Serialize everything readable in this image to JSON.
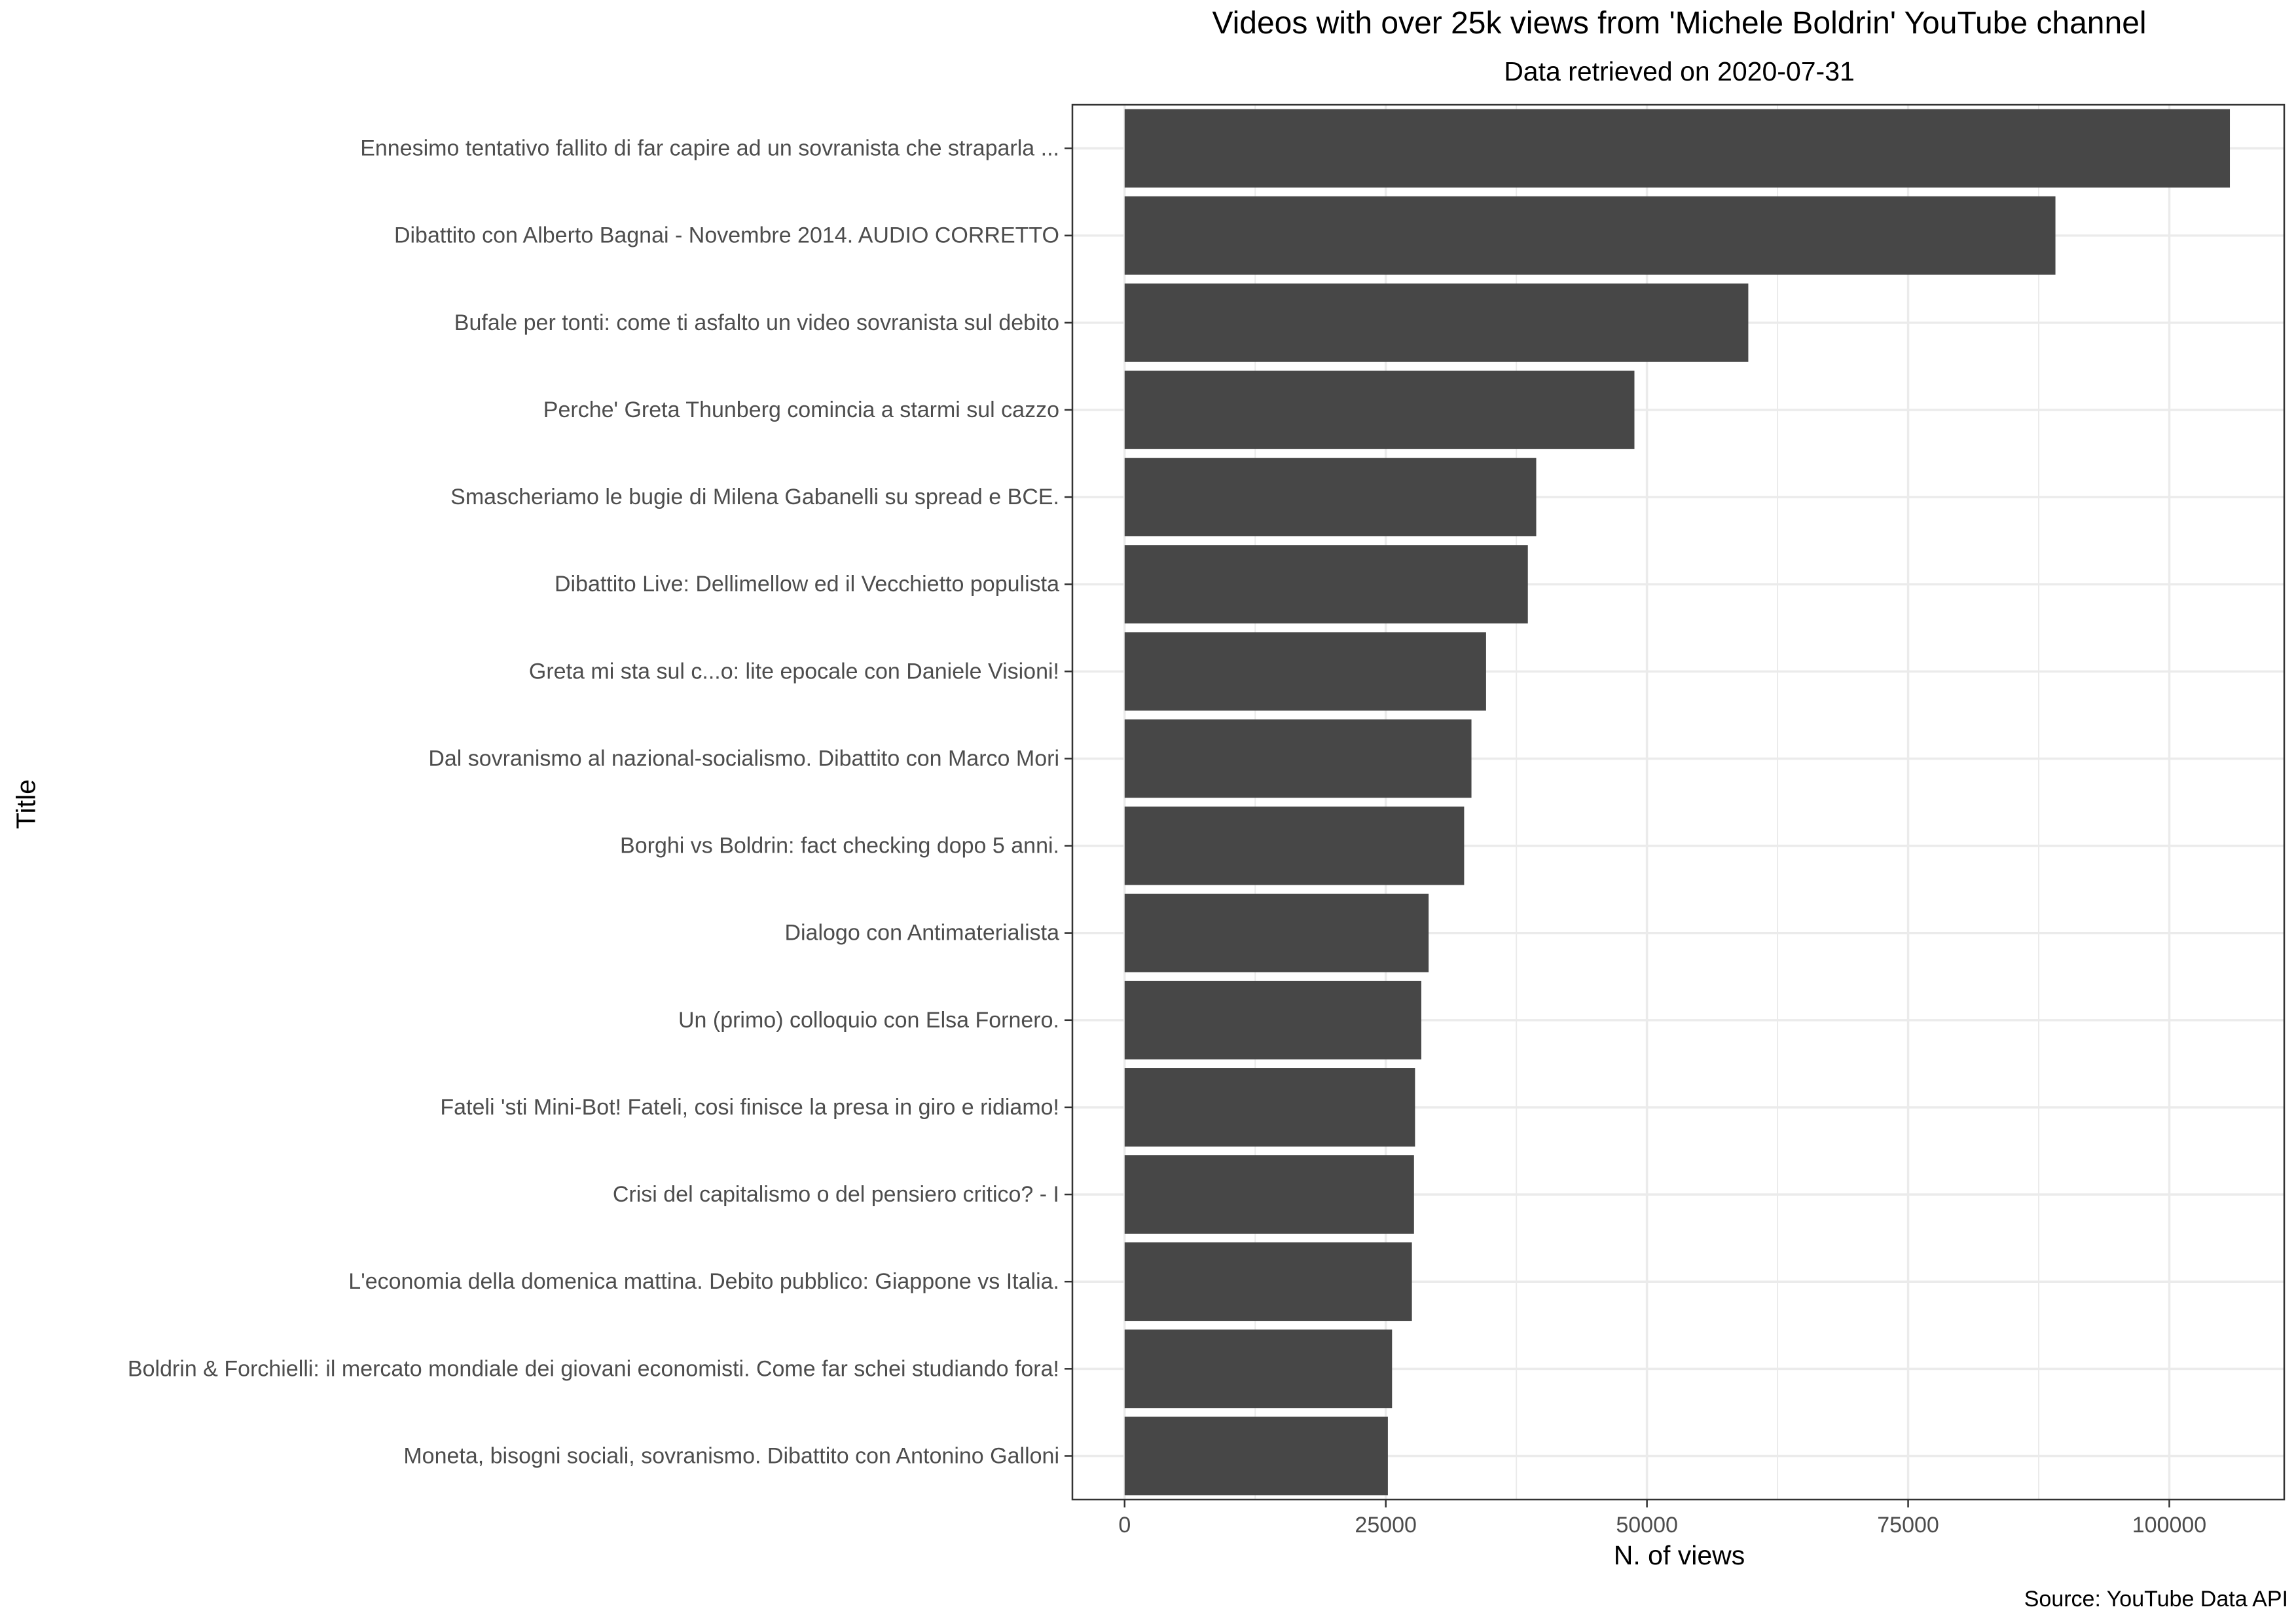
{
  "chart_data": {
    "type": "bar",
    "orientation": "horizontal",
    "title": "Videos with over 25k views from 'Michele Boldrin' YouTube channel",
    "subtitle": "Data retrieved on 2020-07-31",
    "xlabel": "N. of views",
    "ylabel": "Title",
    "caption": "Source: YouTube Data API",
    "xlim": [
      -5000,
      111000
    ],
    "xticks": [
      0,
      25000,
      50000,
      75000,
      100000
    ],
    "xtick_labels": [
      "0",
      "25000",
      "50000",
      "75000",
      "100000"
    ],
    "grid": true,
    "bar_color": "#474747",
    "categories": [
      "Ennesimo tentativo fallito di far capire ad un sovranista che straparla ...",
      "Dibattito con Alberto Bagnai - Novembre 2014. AUDIO CORRETTO",
      "Bufale per tonti: come ti asfalto un video sovranista sul debito",
      "Perche' Greta Thunberg comincia a starmi sul cazzo",
      "Smascheriamo le bugie di Milena Gabanelli su spread e BCE.",
      "Dibattito Live: Dellimellow ed il Vecchietto populista",
      "Greta mi sta sul c...o: lite epocale con Daniele Visioni!",
      "Dal sovranismo al nazional-socialismo. Dibattito con Marco Mori",
      "Borghi vs Boldrin: fact checking dopo 5 anni.",
      "Dialogo con Antimaterialista",
      "Un (primo) colloquio con Elsa Fornero.",
      "Fateli 'sti Mini-Bot! Fateli, cosi finisce la presa in giro e ridiamo!",
      "Crisi del capitalismo o del pensiero critico? - I",
      "L'economia della domenica mattina. Debito pubblico: Giappone vs Italia.",
      "Boldrin & Forchielli: il mercato mondiale dei giovani economisti. Come far schei studiando fora!",
      "Moneta, bisogni sociali, sovranismo. Dibattito con Antonino Galloni"
    ],
    "values": [
      105800,
      89100,
      59700,
      48800,
      39400,
      38600,
      34600,
      33200,
      32500,
      29100,
      28400,
      27800,
      27700,
      27500,
      25600,
      25200
    ]
  }
}
